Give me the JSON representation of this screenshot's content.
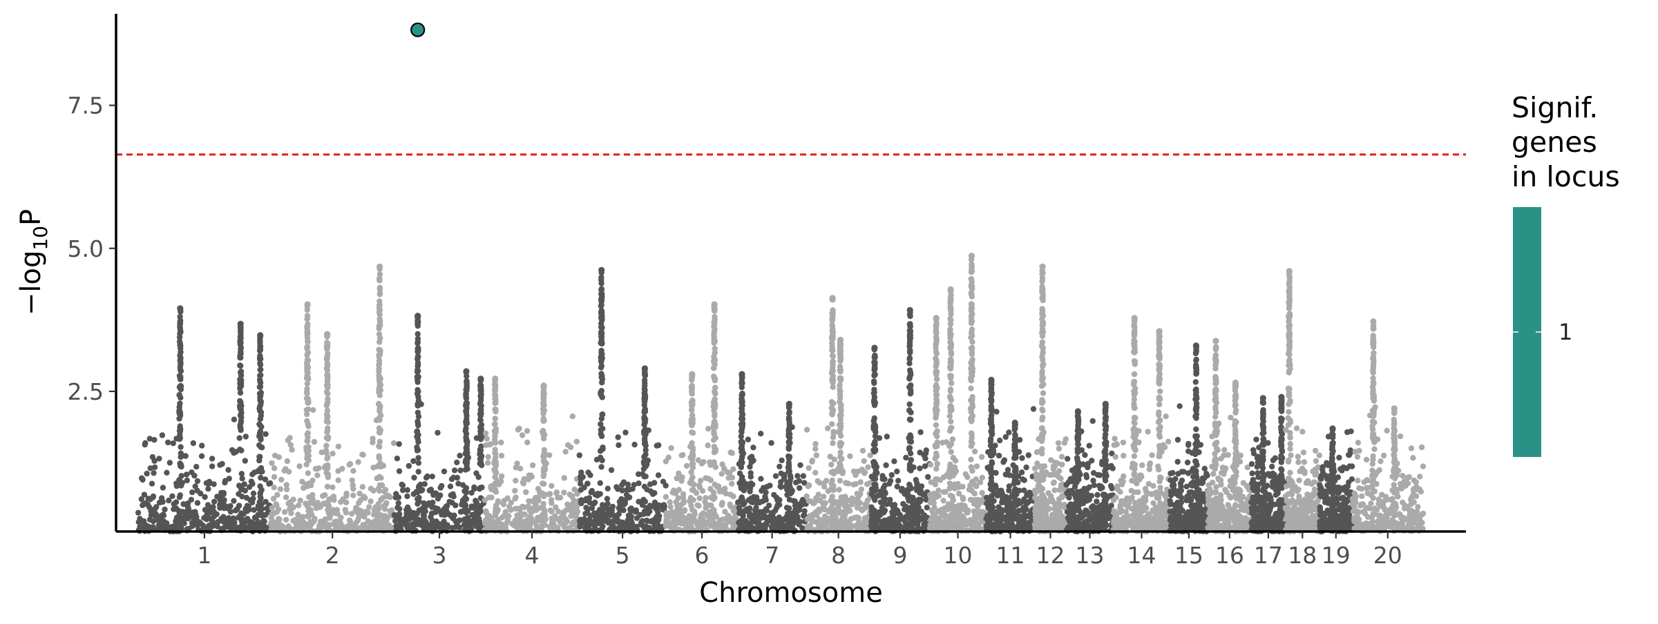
{
  "chart_data": {
    "type": "scatter",
    "title": "",
    "xlabel": "Chromosome",
    "ylabel_main": "−log",
    "ylabel_sub": "10",
    "ylabel_end": "P",
    "ylim": [
      0.05,
      9.1
    ],
    "y_ticks": [
      2.5,
      5.0,
      7.5
    ],
    "y_tick_labels": [
      "2.5",
      "5.0",
      "7.5"
    ],
    "grid": false,
    "significance_threshold": 6.64,
    "threshold_color": "#e41a1c",
    "colors": {
      "dark": "#555555",
      "light": "#aaaaaa",
      "highlight": "#2a9187"
    },
    "chromosomes": [
      {
        "label": "1",
        "start": 0.0,
        "end": 0.101,
        "peaks": [
          [
            0.032,
            3.95
          ],
          [
            0.078,
            3.68
          ],
          [
            0.093,
            3.48
          ]
        ]
      },
      {
        "label": "2",
        "start": 0.101,
        "end": 0.195,
        "peaks": [
          [
            0.028,
            4.02
          ],
          [
            0.043,
            3.5
          ],
          [
            0.083,
            4.68
          ]
        ]
      },
      {
        "label": "3",
        "start": 0.195,
        "end": 0.264,
        "peaks": [
          [
            0.018,
            3.82
          ],
          [
            0.055,
            2.85
          ],
          [
            0.066,
            2.72
          ]
        ]
      },
      {
        "label": "4",
        "start": 0.264,
        "end": 0.336,
        "peaks": [
          [
            0.008,
            2.72
          ],
          [
            0.045,
            2.6
          ]
        ]
      },
      {
        "label": "5",
        "start": 0.336,
        "end": 0.402,
        "peaks": [
          [
            0.017,
            4.62
          ],
          [
            0.05,
            2.9
          ]
        ]
      },
      {
        "label": "6",
        "start": 0.402,
        "end": 0.457,
        "peaks": [
          [
            0.037,
            4.02
          ],
          [
            0.02,
            2.8
          ]
        ]
      },
      {
        "label": "7",
        "start": 0.457,
        "end": 0.509,
        "peaks": [
          [
            0.003,
            2.8
          ],
          [
            0.039,
            2.28
          ]
        ]
      },
      {
        "label": "8",
        "start": 0.509,
        "end": 0.558,
        "peaks": [
          [
            0.02,
            4.13
          ],
          [
            0.026,
            3.4
          ]
        ]
      },
      {
        "label": "9",
        "start": 0.558,
        "end": 0.603,
        "peaks": [
          [
            0.003,
            3.26
          ],
          [
            0.03,
            3.92
          ]
        ]
      },
      {
        "label": "10",
        "start": 0.603,
        "end": 0.646,
        "peaks": [
          [
            0.005,
            3.78
          ],
          [
            0.016,
            4.28
          ],
          [
            0.032,
            4.87
          ]
        ]
      },
      {
        "label": "11",
        "start": 0.646,
        "end": 0.683,
        "peaks": [
          [
            0.004,
            2.7
          ],
          [
            0.022,
            1.95
          ]
        ]
      },
      {
        "label": "12",
        "start": 0.683,
        "end": 0.707,
        "peaks": [
          [
            0.006,
            4.68
          ]
        ]
      },
      {
        "label": "13",
        "start": 0.707,
        "end": 0.743,
        "peaks": [
          [
            0.009,
            2.15
          ],
          [
            0.03,
            2.28
          ]
        ]
      },
      {
        "label": "14",
        "start": 0.743,
        "end": 0.786,
        "peaks": [
          [
            0.016,
            3.78
          ],
          [
            0.035,
            3.55
          ]
        ]
      },
      {
        "label": "15",
        "start": 0.786,
        "end": 0.815,
        "peaks": [
          [
            0.02,
            3.3
          ]
        ]
      },
      {
        "label": "16",
        "start": 0.815,
        "end": 0.848,
        "peaks": [
          [
            0.006,
            3.38
          ],
          [
            0.021,
            2.65
          ]
        ]
      },
      {
        "label": "17",
        "start": 0.848,
        "end": 0.874,
        "peaks": [
          [
            0.009,
            2.38
          ],
          [
            0.023,
            2.4
          ]
        ]
      },
      {
        "label": "18",
        "start": 0.874,
        "end": 0.9,
        "peaks": [
          [
            0.003,
            4.6
          ]
        ]
      },
      {
        "label": "19",
        "start": 0.9,
        "end": 0.925,
        "peaks": [
          [
            0.01,
            1.85
          ]
        ]
      },
      {
        "label": "20",
        "start": 0.925,
        "end": 0.979,
        "peaks": [
          [
            0.016,
            3.72
          ],
          [
            0.032,
            2.2
          ]
        ]
      }
    ],
    "highlighted_points": [
      {
        "chromosome": "3",
        "x_offset": 0.018,
        "y": 8.82,
        "signif_genes": 1
      }
    ],
    "legend": {
      "title_lines": [
        "Signif.",
        "genes",
        "in locus"
      ],
      "tick_label": "1",
      "placement": "right"
    }
  }
}
